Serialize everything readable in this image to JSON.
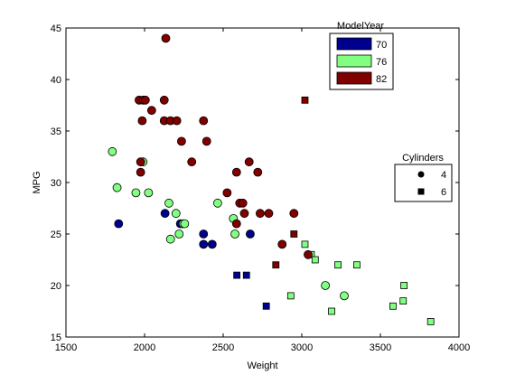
{
  "chart_data": {
    "type": "scatter",
    "title": "",
    "xlabel": "Weight",
    "ylabel": "MPG",
    "xlim": [
      1500,
      4000
    ],
    "ylim": [
      15,
      45
    ],
    "x_ticks": [
      1500,
      2000,
      2500,
      3000,
      3500,
      4000
    ],
    "y_ticks": [
      15,
      20,
      25,
      30,
      35,
      40,
      45
    ],
    "grid": false,
    "legends": {
      "model_year": {
        "title": "ModelYear",
        "placement": "top-right",
        "entries": [
          {
            "label": "70",
            "color": "#00008f"
          },
          {
            "label": "76",
            "color": "#80ff80"
          },
          {
            "label": "82",
            "color": "#800000"
          }
        ]
      },
      "cylinders": {
        "title": "Cylinders",
        "placement": "right",
        "entries": [
          {
            "label": "4",
            "marker": "circle"
          },
          {
            "label": "6",
            "marker": "square"
          }
        ]
      }
    },
    "series": [
      {
        "name": "70",
        "color": "#00008f",
        "cyl4": [
          [
            1835,
            26
          ],
          [
            2130,
            27
          ],
          [
            2228,
            26
          ],
          [
            2375,
            25
          ],
          [
            2375,
            24
          ],
          [
            2430,
            24
          ],
          [
            2672,
            25
          ]
        ],
        "cyl6": [
          [
            2587,
            21
          ],
          [
            2648,
            21
          ],
          [
            2774,
            18
          ]
        ]
      },
      {
        "name": "76",
        "color": "#80ff80",
        "cyl4": [
          [
            1795,
            33
          ],
          [
            1825,
            29.5
          ],
          [
            1945,
            29
          ],
          [
            1990,
            32
          ],
          [
            2025,
            29
          ],
          [
            2155,
            28
          ],
          [
            2165,
            24.5
          ],
          [
            2200,
            27
          ],
          [
            2220,
            25
          ],
          [
            2245,
            26
          ],
          [
            2255,
            26
          ],
          [
            2465,
            28
          ],
          [
            2565,
            26.5
          ],
          [
            2575,
            25
          ],
          [
            3150,
            20
          ],
          [
            3270,
            19
          ]
        ],
        "cyl6": [
          [
            2930,
            19
          ],
          [
            3020,
            24
          ],
          [
            3060,
            23
          ],
          [
            3085,
            22.5
          ],
          [
            3190,
            17.5
          ],
          [
            3230,
            22
          ],
          [
            3350,
            22
          ],
          [
            3580,
            18
          ],
          [
            3645,
            18.5
          ],
          [
            3650,
            20
          ],
          [
            3820,
            16.5
          ]
        ]
      },
      {
        "name": "82",
        "color": "#800000",
        "cyl4": [
          [
            1965,
            38
          ],
          [
            1975,
            32
          ],
          [
            1975,
            31
          ],
          [
            1985,
            36
          ],
          [
            1990,
            38
          ],
          [
            2005,
            38
          ],
          [
            2045,
            37
          ],
          [
            2125,
            38
          ],
          [
            2125,
            36
          ],
          [
            2135,
            44
          ],
          [
            2165,
            36
          ],
          [
            2205,
            36
          ],
          [
            2235,
            34
          ],
          [
            2300,
            32
          ],
          [
            2375,
            36
          ],
          [
            2395,
            34
          ],
          [
            2525,
            29
          ],
          [
            2585,
            26
          ],
          [
            2585,
            31
          ],
          [
            2605,
            28
          ],
          [
            2625,
            28
          ],
          [
            2635,
            27
          ],
          [
            2665,
            32
          ],
          [
            2720,
            31
          ],
          [
            2735,
            27
          ],
          [
            2790,
            27
          ],
          [
            2875,
            24
          ],
          [
            2950,
            27
          ],
          [
            3040,
            23
          ]
        ],
        "cyl6": [
          [
            2835,
            22
          ],
          [
            2950,
            25
          ],
          [
            3020,
            38
          ]
        ]
      }
    ]
  }
}
